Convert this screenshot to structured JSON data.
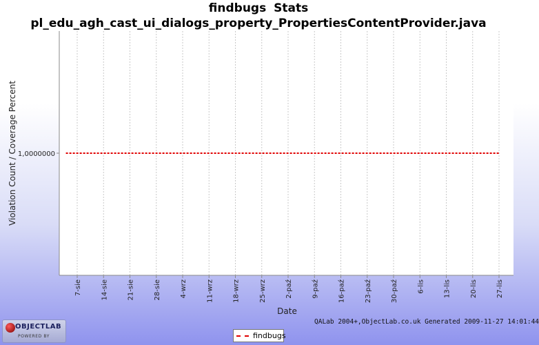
{
  "title_line1": "findbugs  Stats",
  "title_line2": "pl_edu_agh_cast_ui_dialogs_property_PropertiesContentProvider.java",
  "footer": "QALab 2004+,ObjectLab.co.uk Generated 2009-11-27 14:01:44",
  "logo": {
    "word": "OBJECTLAB",
    "sub": "POWERED BY"
  },
  "legend": {
    "label": "findbugs",
    "color": "#e00000"
  },
  "colors": {
    "series": "#e00000",
    "grid": "#c8c8c8",
    "plot_bg": "#ffffff"
  },
  "chart_data": {
    "type": "line",
    "title": "findbugs  Stats",
    "subtitle": "pl_edu_agh_cast_ui_dialogs_property_PropertiesContentProvider.java",
    "xlabel": "Date",
    "ylabel": "Violation Count / Coverage Percent",
    "x_tick_labels": [
      "7-sie",
      "14-sie",
      "21-sie",
      "28-sie",
      "4-wrz",
      "11-wrz",
      "18-wrz",
      "25-wrz",
      "2-paź",
      "9-paź",
      "16-paź",
      "23-paź",
      "30-paź",
      "6-lis",
      "13-lis",
      "20-lis",
      "27-lis"
    ],
    "y_tick_labels": [
      "1,0000000"
    ],
    "yticks": [
      1
    ],
    "ylim": [
      0,
      2
    ],
    "x_range": [
      "4-sie",
      "27-lis"
    ],
    "grid": "vertical dashed",
    "legend_position": "bottom-center",
    "series": [
      {
        "name": "findbugs",
        "color": "#e00000",
        "style": "dashed",
        "x": [
          "4-sie",
          "27-lis"
        ],
        "values": [
          1,
          1
        ]
      }
    ]
  }
}
